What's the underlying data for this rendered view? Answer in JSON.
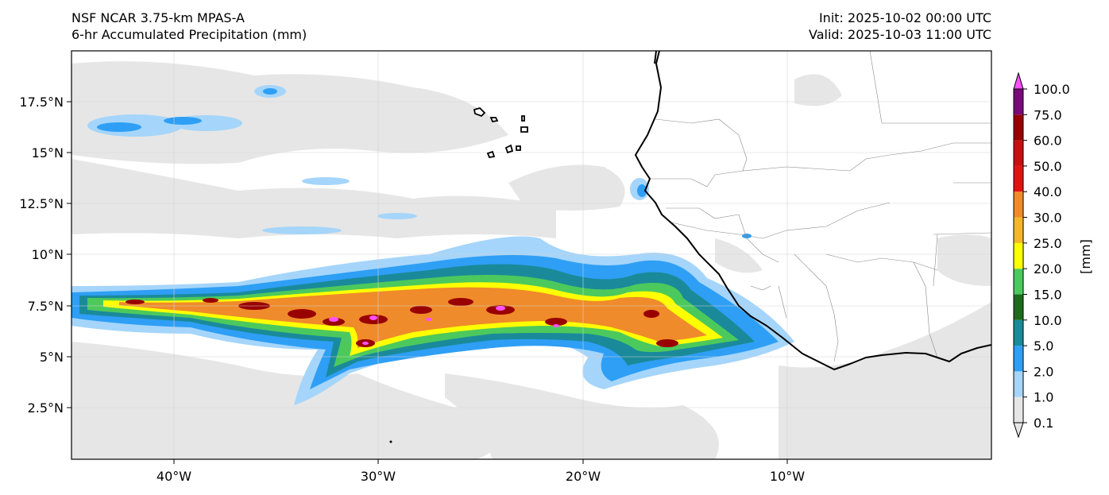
{
  "header": {
    "model": "NSF NCAR 3.75-km MPAS-A",
    "field": "6-hr Accumulated Precipitation (mm)",
    "init": "Init: 2025-10-02 00:00 UTC",
    "valid": "Valid: 2025-10-03 11:00 UTC"
  },
  "axes": {
    "lat_ticks": [
      "17.5°N",
      "15°N",
      "12.5°N",
      "10°N",
      "7.5°N",
      "5°N",
      "2.5°N"
    ],
    "lon_ticks": [
      "40°W",
      "30°W",
      "20°W",
      "10°W"
    ]
  },
  "colorbar": {
    "unit": "[mm]",
    "levels": [
      "0.1",
      "1.0",
      "2.0",
      "5.0",
      "10.0",
      "15.0",
      "20.0",
      "25.0",
      "30.0",
      "40.0",
      "50.0",
      "60.0",
      "75.0",
      "100.0"
    ],
    "colors": [
      "#e6e6e6",
      "#a5d5fa",
      "#2e9ff5",
      "#1a8a9a",
      "#1c6b1c",
      "#4cc95c",
      "#ffff00",
      "#f6b62a",
      "#ef8b2a",
      "#e0140f",
      "#c80f0f",
      "#990000",
      "#7a0a7a",
      "#ff50ff"
    ]
  }
}
